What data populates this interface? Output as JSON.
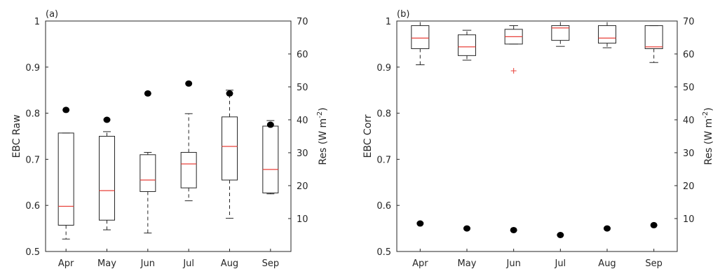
{
  "chart_data": [
    {
      "type": "boxplot",
      "panel_label": "(a)",
      "ylabel": "EBC Raw",
      "ylim": [
        0.5,
        1.0
      ],
      "yticks": [
        "0.5",
        "0.6",
        "0.7",
        "0.8",
        "0.9",
        "1"
      ],
      "y2label_main": "Res (W m",
      "y2label_sup": "-2",
      "y2label_end": ")",
      "y2lim": [
        0,
        70
      ],
      "y2ticks": [
        "10",
        "20",
        "30",
        "40",
        "50",
        "60",
        "70"
      ],
      "categories": [
        "Apr",
        "May",
        "Jun",
        "Jul",
        "Aug",
        "Sep"
      ],
      "boxes": [
        {
          "whislo": 0.527,
          "q1": 0.557,
          "med": 0.598,
          "q3": 0.757,
          "whishi": 0.757
        },
        {
          "whislo": 0.547,
          "q1": 0.568,
          "med": 0.632,
          "q3": 0.75,
          "whishi": 0.76
        },
        {
          "whislo": 0.54,
          "q1": 0.63,
          "med": 0.655,
          "q3": 0.71,
          "whishi": 0.715
        },
        {
          "whislo": 0.61,
          "q1": 0.638,
          "med": 0.69,
          "q3": 0.715,
          "whishi": 0.799
        },
        {
          "whislo": 0.572,
          "q1": 0.655,
          "med": 0.728,
          "q3": 0.792,
          "whishi": 0.85
        },
        {
          "whislo": 0.625,
          "q1": 0.627,
          "med": 0.678,
          "q3": 0.772,
          "whishi": 0.784
        }
      ],
      "outliers": [],
      "res_values": [
        43.0,
        40.0,
        48.0,
        51.0,
        48.0,
        38.5
      ]
    },
    {
      "type": "boxplot",
      "panel_label": "(b)",
      "ylabel": "EBC Corr",
      "ylim": [
        0.5,
        1.0
      ],
      "yticks": [
        "0.5",
        "0.6",
        "0.7",
        "0.8",
        "0.9",
        "1"
      ],
      "y2label_main": "Res (W m",
      "y2label_sup": "-2",
      "y2label_end": ")",
      "y2lim": [
        0,
        70
      ],
      "y2ticks": [
        "10",
        "20",
        "30",
        "40",
        "50",
        "60",
        "70"
      ],
      "categories": [
        "Apr",
        "May",
        "Jun",
        "Jul",
        "Aug",
        "Sep"
      ],
      "boxes": [
        {
          "whislo": 0.905,
          "q1": 0.94,
          "med": 0.963,
          "q3": 0.99,
          "whishi": 1.0
        },
        {
          "whislo": 0.915,
          "q1": 0.925,
          "med": 0.944,
          "q3": 0.97,
          "whishi": 0.98
        },
        {
          "whislo": 0.95,
          "q1": 0.95,
          "med": 0.966,
          "q3": 0.982,
          "whishi": 0.99
        },
        {
          "whislo": 0.945,
          "q1": 0.958,
          "med": 0.985,
          "q3": 0.99,
          "whishi": 1.0
        },
        {
          "whislo": 0.942,
          "q1": 0.952,
          "med": 0.963,
          "q3": 0.99,
          "whishi": 1.0
        },
        {
          "whislo": 0.91,
          "q1": 0.94,
          "med": 0.944,
          "q3": 0.99,
          "whishi": 0.99
        }
      ],
      "outliers": [
        {
          "category": "Jun",
          "value": 0.892
        }
      ],
      "res_values": [
        8.5,
        7.0,
        6.5,
        5.0,
        7.0,
        8.0
      ]
    }
  ],
  "colors": {
    "median": "#e8413a",
    "box": "#262626",
    "whisker": "#262626",
    "outlier": "#e8413a",
    "res_marker": "#000000"
  }
}
